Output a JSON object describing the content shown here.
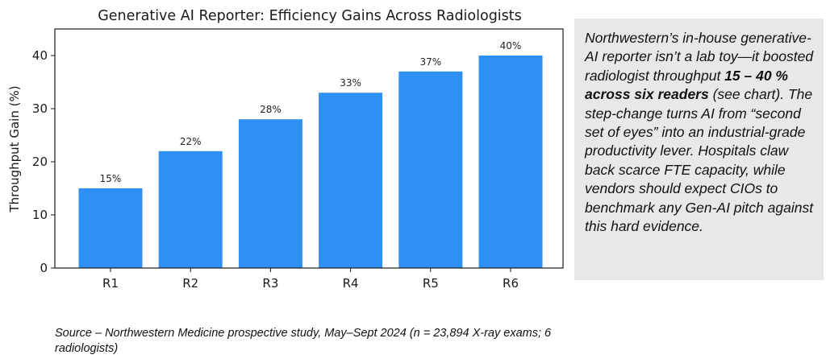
{
  "chart_data": {
    "type": "bar",
    "title": "Generative AI Reporter: Efficiency Gains Across Radiologists",
    "xlabel": "",
    "ylabel": "Throughput Gain (%)",
    "categories": [
      "R1",
      "R2",
      "R3",
      "R4",
      "R5",
      "R6"
    ],
    "values": [
      15,
      22,
      28,
      33,
      37,
      40
    ],
    "data_labels": [
      "15%",
      "22%",
      "28%",
      "33%",
      "37%",
      "40%"
    ],
    "ylim": [
      0,
      45
    ],
    "yticks": [
      0,
      10,
      20,
      30,
      40
    ],
    "grid": false,
    "bar_color": "#2e8ff5"
  },
  "insight": {
    "text_before": "Northwestern’s in-house generative-AI reporter isn’t a lab toy—it boosted radiologist throughput ",
    "bold": "15 – 40 % across six readers",
    "text_after": " (see chart). The step-change turns AI from “second set of eyes” into an industrial-grade productivity lever. Hospitals claw back scarce FTE capacity, while vendors should expect CIOs to benchmark any Gen-AI pitch against this hard evidence."
  },
  "source": "Source – Northwestern Medicine prospective study, May–Sept 2024 (n = 23,894 X-ray exams; 6 radiologists)",
  "colors": {
    "bar": "#2e8ff5",
    "box_background": "#e8e8e8"
  }
}
